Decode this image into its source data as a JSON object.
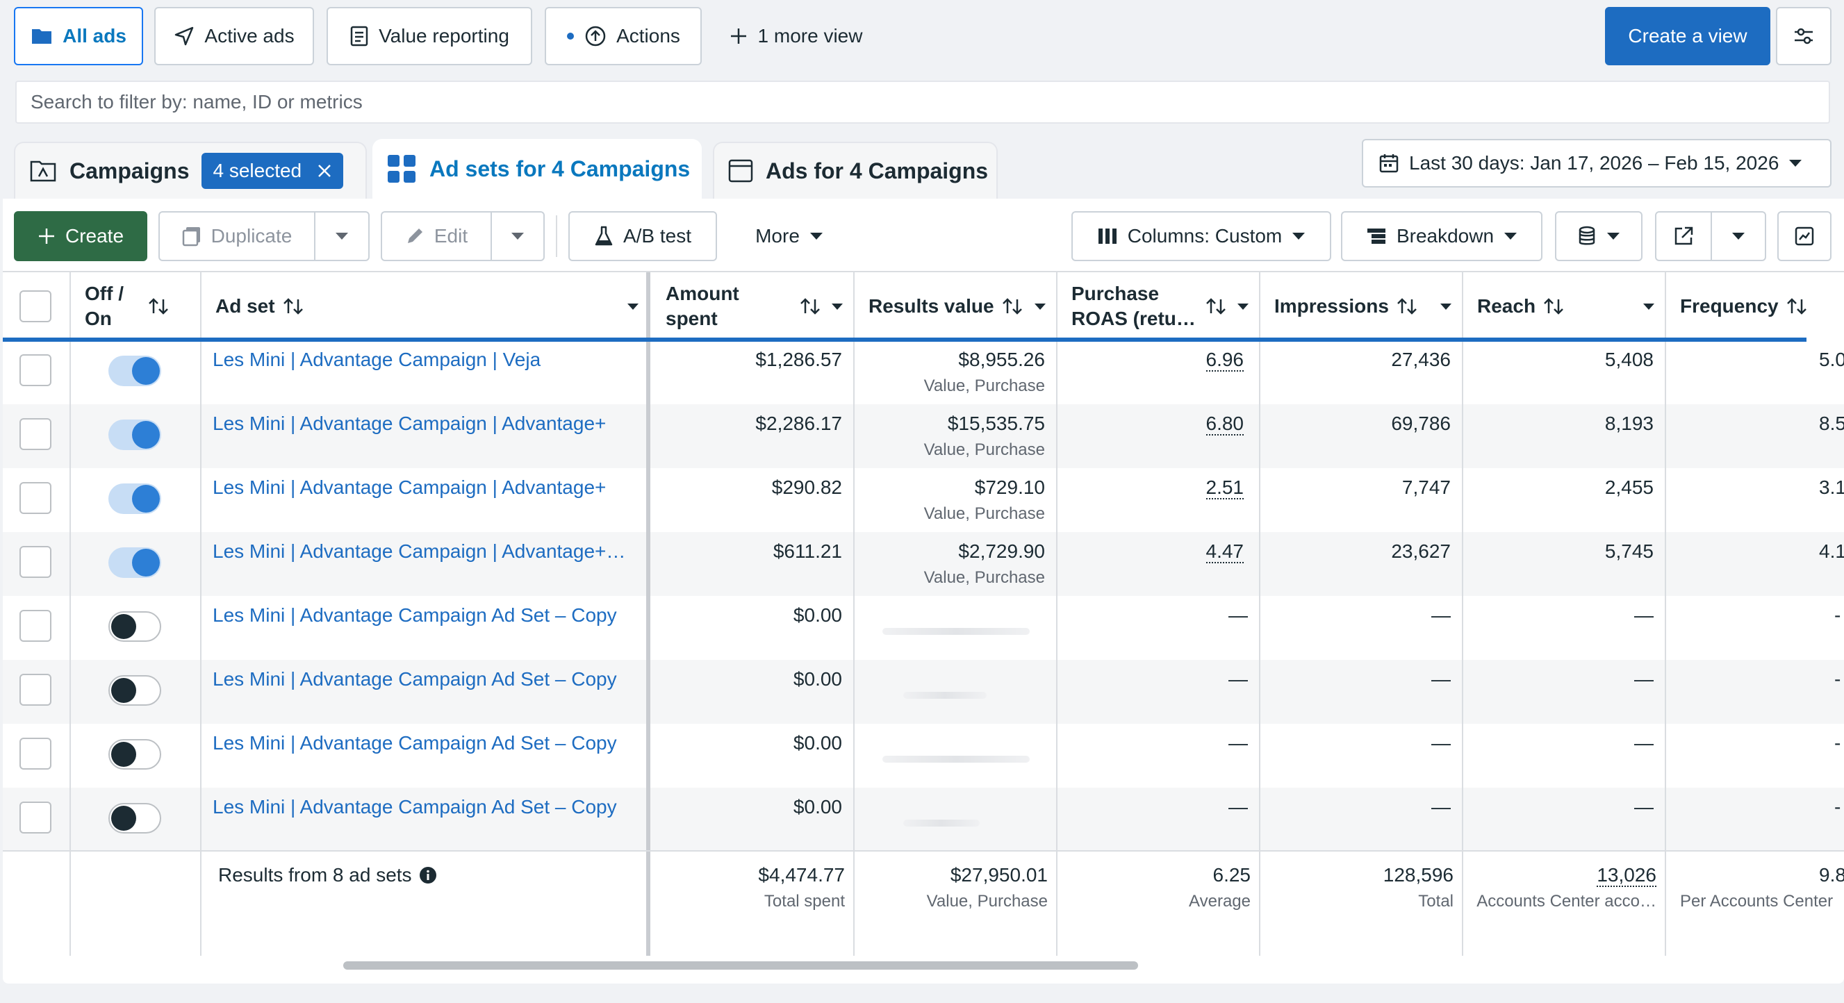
{
  "views": {
    "all_ads": "All ads",
    "active_ads": "Active ads",
    "value_reporting": "Value reporting",
    "actions": "Actions",
    "more_view": "1 more view",
    "create_view": "Create a view"
  },
  "search": {
    "placeholder": "Search to filter by: name, ID or metrics"
  },
  "tabs": {
    "campaigns": "Campaigns",
    "selected": "4 selected",
    "ad_sets": "Ad sets for 4 Campaigns",
    "ads": "Ads for 4 Campaigns"
  },
  "date_range": "Last 30 days: Jan 17, 2026 – Feb 15, 2026",
  "toolbar": {
    "create": "Create",
    "duplicate": "Duplicate",
    "edit": "Edit",
    "ab_test": "A/B test",
    "more": "More",
    "columns": "Columns: Custom",
    "breakdown": "Breakdown"
  },
  "columns": {
    "off_on_1": "Off /",
    "off_on_2": "On",
    "ad_set": "Ad set",
    "amount_1": "Amount",
    "amount_2": "spent",
    "results_value": "Results value",
    "roas_1": "Purchase",
    "roas_2": "ROAS (retu…",
    "impressions": "Impressions",
    "reach": "Reach",
    "frequency": "Frequency"
  },
  "rows": [
    {
      "name": "Les Mini | Advantage Campaign | Veja",
      "on": true,
      "spent": "$1,286.57",
      "value": "$8,955.26",
      "value_sub": "Value, Purchase",
      "roas": "6.96",
      "impressions": "27,436",
      "reach": "5,408",
      "frequency": "5.0"
    },
    {
      "name": "Les Mini | Advantage Campaign | Advantage+",
      "on": true,
      "spent": "$2,286.17",
      "value": "$15,535.75",
      "value_sub": "Value, Purchase",
      "roas": "6.80",
      "impressions": "69,786",
      "reach": "8,193",
      "frequency": "8.5"
    },
    {
      "name": "Les Mini | Advantage Campaign | Advantage+",
      "on": true,
      "spent": "$290.82",
      "value": "$729.10",
      "value_sub": "Value, Purchase",
      "roas": "2.51",
      "impressions": "7,747",
      "reach": "2,455",
      "frequency": "3.1"
    },
    {
      "name": "Les Mini | Advantage Campaign | Advantage+…",
      "on": true,
      "spent": "$611.21",
      "value": "$2,729.90",
      "value_sub": "Value, Purchase",
      "roas": "4.47",
      "impressions": "23,627",
      "reach": "5,745",
      "frequency": "4.1"
    },
    {
      "name": "Les Mini | Advantage Campaign Ad Set – Copy",
      "on": false,
      "spent": "$0.00",
      "value": "",
      "value_sub": "",
      "roas": "—",
      "impressions": "—",
      "reach": "—",
      "frequency": "-"
    },
    {
      "name": "Les Mini | Advantage Campaign Ad Set – Copy",
      "on": false,
      "spent": "$0.00",
      "value": "",
      "value_sub": "",
      "roas": "—",
      "impressions": "—",
      "reach": "—",
      "frequency": "-"
    },
    {
      "name": "Les Mini | Advantage Campaign Ad Set – Copy",
      "on": false,
      "spent": "$0.00",
      "value": "",
      "value_sub": "",
      "roas": "—",
      "impressions": "—",
      "reach": "—",
      "frequency": "-"
    },
    {
      "name": "Les Mini | Advantage Campaign Ad Set – Copy",
      "on": false,
      "spent": "$0.00",
      "value": "",
      "value_sub": "",
      "roas": "—",
      "impressions": "—",
      "reach": "—",
      "frequency": "-"
    }
  ],
  "summary": {
    "label": "Results from 8 ad sets",
    "spent": "$4,474.77",
    "spent_sub": "Total spent",
    "value": "$27,950.01",
    "value_sub": "Value, Purchase",
    "roas": "6.25",
    "roas_sub": "Average",
    "impressions": "128,596",
    "impressions_sub": "Total",
    "reach": "13,026",
    "reach_sub": "Accounts Center acco…",
    "frequency": "9.8",
    "frequency_sub": "Per Accounts Center"
  },
  "colors": {
    "accent": "#1d6cc1",
    "create_green": "#2e6b45",
    "toggle_on": "#2d7fd6"
  }
}
